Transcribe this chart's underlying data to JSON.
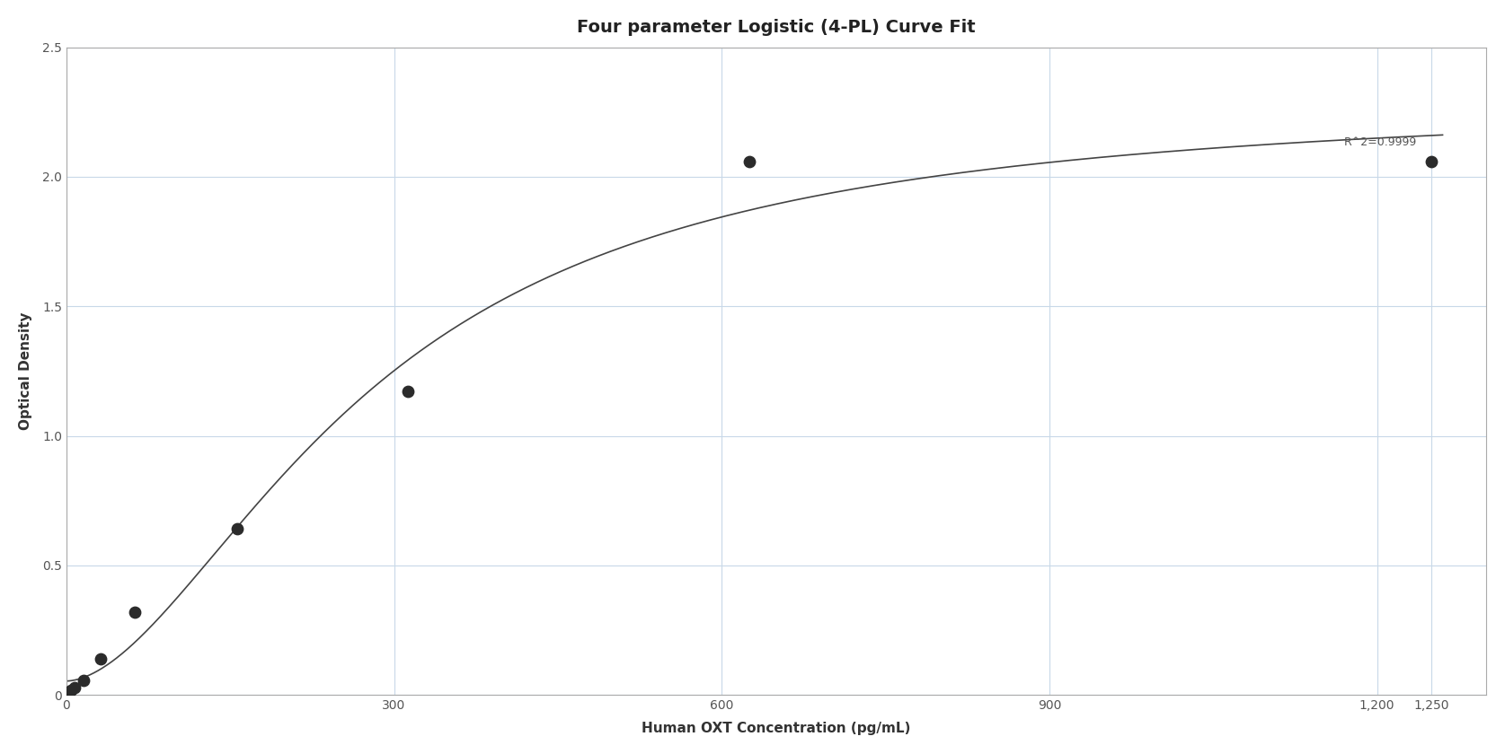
{
  "title": "Four parameter Logistic (4-PL) Curve Fit",
  "xlabel": "Human OXT Concentration (pg/mL)",
  "ylabel": "Optical Density",
  "r_squared_label": "R^2=0.9999",
  "data_x": [
    1.95,
    3.9,
    7.8,
    15.6,
    31.25,
    62.5,
    156.25,
    312.5,
    625,
    1250
  ],
  "data_y": [
    0.012,
    0.018,
    0.028,
    0.055,
    0.14,
    0.32,
    0.64,
    1.17,
    2.06,
    2.06
  ],
  "xlim": [
    0,
    1300
  ],
  "ylim": [
    0,
    2.5
  ],
  "xticks": [
    0,
    300,
    600,
    900,
    1200,
    1250
  ],
  "yticks": [
    0,
    0.5,
    1.0,
    1.5,
    2.0,
    2.5
  ],
  "background_color": "#ffffff",
  "grid_color": "#c8d8e8",
  "line_color": "#444444",
  "dot_color": "#2b2b2b",
  "dot_size": 80,
  "title_fontsize": 14,
  "label_fontsize": 11,
  "tick_fontsize": 10,
  "annotation_fontsize": 9
}
